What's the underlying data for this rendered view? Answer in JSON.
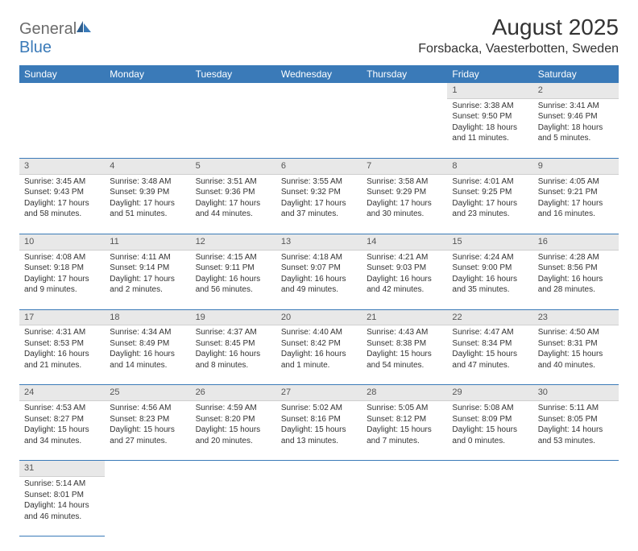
{
  "brand": {
    "part1": "General",
    "part2": "Blue"
  },
  "title": "August 2025",
  "location": "Forsbacka, Vaesterbotten, Sweden",
  "colors": {
    "header_bg": "#3a7ab8",
    "header_text": "#ffffff",
    "daynum_bg": "#e8e8e8",
    "row_divider": "#3a7ab8",
    "text": "#333333",
    "logo_gray": "#6b6b6b",
    "logo_blue": "#3a7ab8"
  },
  "typography": {
    "title_fontsize": 28,
    "location_fontsize": 16,
    "weekday_fontsize": 12,
    "daynum_fontsize": 11,
    "body_fontsize": 10
  },
  "weekdays": [
    "Sunday",
    "Monday",
    "Tuesday",
    "Wednesday",
    "Thursday",
    "Friday",
    "Saturday"
  ],
  "weeks": [
    {
      "nums": [
        "",
        "",
        "",
        "",
        "",
        "1",
        "2"
      ],
      "cells": [
        null,
        null,
        null,
        null,
        null,
        {
          "sunrise": "Sunrise: 3:38 AM",
          "sunset": "Sunset: 9:50 PM",
          "day1": "Daylight: 18 hours",
          "day2": "and 11 minutes."
        },
        {
          "sunrise": "Sunrise: 3:41 AM",
          "sunset": "Sunset: 9:46 PM",
          "day1": "Daylight: 18 hours",
          "day2": "and 5 minutes."
        }
      ]
    },
    {
      "nums": [
        "3",
        "4",
        "5",
        "6",
        "7",
        "8",
        "9"
      ],
      "cells": [
        {
          "sunrise": "Sunrise: 3:45 AM",
          "sunset": "Sunset: 9:43 PM",
          "day1": "Daylight: 17 hours",
          "day2": "and 58 minutes."
        },
        {
          "sunrise": "Sunrise: 3:48 AM",
          "sunset": "Sunset: 9:39 PM",
          "day1": "Daylight: 17 hours",
          "day2": "and 51 minutes."
        },
        {
          "sunrise": "Sunrise: 3:51 AM",
          "sunset": "Sunset: 9:36 PM",
          "day1": "Daylight: 17 hours",
          "day2": "and 44 minutes."
        },
        {
          "sunrise": "Sunrise: 3:55 AM",
          "sunset": "Sunset: 9:32 PM",
          "day1": "Daylight: 17 hours",
          "day2": "and 37 minutes."
        },
        {
          "sunrise": "Sunrise: 3:58 AM",
          "sunset": "Sunset: 9:29 PM",
          "day1": "Daylight: 17 hours",
          "day2": "and 30 minutes."
        },
        {
          "sunrise": "Sunrise: 4:01 AM",
          "sunset": "Sunset: 9:25 PM",
          "day1": "Daylight: 17 hours",
          "day2": "and 23 minutes."
        },
        {
          "sunrise": "Sunrise: 4:05 AM",
          "sunset": "Sunset: 9:21 PM",
          "day1": "Daylight: 17 hours",
          "day2": "and 16 minutes."
        }
      ]
    },
    {
      "nums": [
        "10",
        "11",
        "12",
        "13",
        "14",
        "15",
        "16"
      ],
      "cells": [
        {
          "sunrise": "Sunrise: 4:08 AM",
          "sunset": "Sunset: 9:18 PM",
          "day1": "Daylight: 17 hours",
          "day2": "and 9 minutes."
        },
        {
          "sunrise": "Sunrise: 4:11 AM",
          "sunset": "Sunset: 9:14 PM",
          "day1": "Daylight: 17 hours",
          "day2": "and 2 minutes."
        },
        {
          "sunrise": "Sunrise: 4:15 AM",
          "sunset": "Sunset: 9:11 PM",
          "day1": "Daylight: 16 hours",
          "day2": "and 56 minutes."
        },
        {
          "sunrise": "Sunrise: 4:18 AM",
          "sunset": "Sunset: 9:07 PM",
          "day1": "Daylight: 16 hours",
          "day2": "and 49 minutes."
        },
        {
          "sunrise": "Sunrise: 4:21 AM",
          "sunset": "Sunset: 9:03 PM",
          "day1": "Daylight: 16 hours",
          "day2": "and 42 minutes."
        },
        {
          "sunrise": "Sunrise: 4:24 AM",
          "sunset": "Sunset: 9:00 PM",
          "day1": "Daylight: 16 hours",
          "day2": "and 35 minutes."
        },
        {
          "sunrise": "Sunrise: 4:28 AM",
          "sunset": "Sunset: 8:56 PM",
          "day1": "Daylight: 16 hours",
          "day2": "and 28 minutes."
        }
      ]
    },
    {
      "nums": [
        "17",
        "18",
        "19",
        "20",
        "21",
        "22",
        "23"
      ],
      "cells": [
        {
          "sunrise": "Sunrise: 4:31 AM",
          "sunset": "Sunset: 8:53 PM",
          "day1": "Daylight: 16 hours",
          "day2": "and 21 minutes."
        },
        {
          "sunrise": "Sunrise: 4:34 AM",
          "sunset": "Sunset: 8:49 PM",
          "day1": "Daylight: 16 hours",
          "day2": "and 14 minutes."
        },
        {
          "sunrise": "Sunrise: 4:37 AM",
          "sunset": "Sunset: 8:45 PM",
          "day1": "Daylight: 16 hours",
          "day2": "and 8 minutes."
        },
        {
          "sunrise": "Sunrise: 4:40 AM",
          "sunset": "Sunset: 8:42 PM",
          "day1": "Daylight: 16 hours",
          "day2": "and 1 minute."
        },
        {
          "sunrise": "Sunrise: 4:43 AM",
          "sunset": "Sunset: 8:38 PM",
          "day1": "Daylight: 15 hours",
          "day2": "and 54 minutes."
        },
        {
          "sunrise": "Sunrise: 4:47 AM",
          "sunset": "Sunset: 8:34 PM",
          "day1": "Daylight: 15 hours",
          "day2": "and 47 minutes."
        },
        {
          "sunrise": "Sunrise: 4:50 AM",
          "sunset": "Sunset: 8:31 PM",
          "day1": "Daylight: 15 hours",
          "day2": "and 40 minutes."
        }
      ]
    },
    {
      "nums": [
        "24",
        "25",
        "26",
        "27",
        "28",
        "29",
        "30"
      ],
      "cells": [
        {
          "sunrise": "Sunrise: 4:53 AM",
          "sunset": "Sunset: 8:27 PM",
          "day1": "Daylight: 15 hours",
          "day2": "and 34 minutes."
        },
        {
          "sunrise": "Sunrise: 4:56 AM",
          "sunset": "Sunset: 8:23 PM",
          "day1": "Daylight: 15 hours",
          "day2": "and 27 minutes."
        },
        {
          "sunrise": "Sunrise: 4:59 AM",
          "sunset": "Sunset: 8:20 PM",
          "day1": "Daylight: 15 hours",
          "day2": "and 20 minutes."
        },
        {
          "sunrise": "Sunrise: 5:02 AM",
          "sunset": "Sunset: 8:16 PM",
          "day1": "Daylight: 15 hours",
          "day2": "and 13 minutes."
        },
        {
          "sunrise": "Sunrise: 5:05 AM",
          "sunset": "Sunset: 8:12 PM",
          "day1": "Daylight: 15 hours",
          "day2": "and 7 minutes."
        },
        {
          "sunrise": "Sunrise: 5:08 AM",
          "sunset": "Sunset: 8:09 PM",
          "day1": "Daylight: 15 hours",
          "day2": "and 0 minutes."
        },
        {
          "sunrise": "Sunrise: 5:11 AM",
          "sunset": "Sunset: 8:05 PM",
          "day1": "Daylight: 14 hours",
          "day2": "and 53 minutes."
        }
      ]
    },
    {
      "nums": [
        "31",
        "",
        "",
        "",
        "",
        "",
        ""
      ],
      "cells": [
        {
          "sunrise": "Sunrise: 5:14 AM",
          "sunset": "Sunset: 8:01 PM",
          "day1": "Daylight: 14 hours",
          "day2": "and 46 minutes."
        },
        null,
        null,
        null,
        null,
        null,
        null
      ]
    }
  ]
}
